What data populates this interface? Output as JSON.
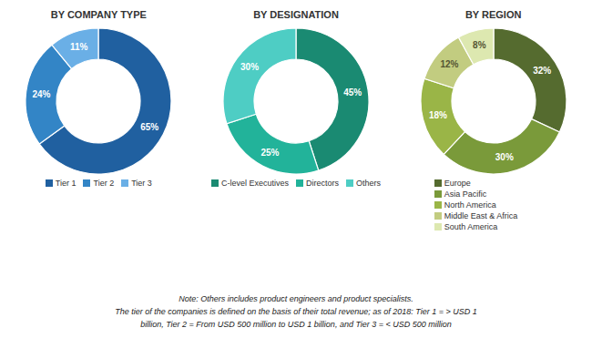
{
  "chart_data": [
    {
      "type": "pie",
      "title": "BY COMPANY TYPE",
      "categories": [
        "Tier 1",
        "Tier 2",
        "Tier 3"
      ],
      "values": [
        65,
        24,
        11
      ],
      "value_labels": [
        "65%",
        "24%",
        "11%"
      ],
      "colors": [
        "#2060a0",
        "#3385c6",
        "#6aafe6"
      ],
      "data_labels": true,
      "legend": "bottom"
    },
    {
      "type": "pie",
      "title": "BY DESIGNATION",
      "categories": [
        "C-level Executives",
        "Directors",
        "Others"
      ],
      "values": [
        45,
        25,
        30
      ],
      "value_labels": [
        "45%",
        "25%",
        "30%"
      ],
      "colors": [
        "#1a8a72",
        "#22b39a",
        "#4ecdc4"
      ],
      "data_labels": true,
      "legend": "bottom"
    },
    {
      "type": "pie",
      "title": "BY REGION",
      "categories": [
        "Europe",
        "Asia Pacific",
        "North America",
        "Middle East & Africa",
        "South America"
      ],
      "values": [
        32,
        30,
        18,
        12,
        8
      ],
      "value_labels": [
        "32%",
        "30%",
        "18%",
        "12%",
        "8%"
      ],
      "colors": [
        "#556b2f",
        "#7a9a3a",
        "#9ab547",
        "#c2cc80",
        "#dde8b0"
      ],
      "data_labels": true,
      "legend": "bottom"
    }
  ],
  "annotations": [
    "Note: Others includes product engineers and product specialists.",
    "The tier of the companies is defined on the basis of their total revenue; as of 2018: Tier 1 = > USD 1",
    "billion, Tier 2 = From USD 500 million to USD 1 billion, and Tier 3 = < USD 500 million"
  ]
}
